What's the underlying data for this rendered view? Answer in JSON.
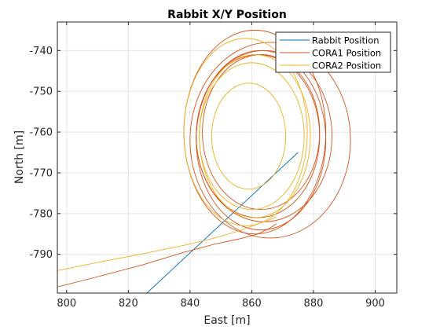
{
  "chart_data": {
    "type": "line",
    "title": "Rabbit X/Y Position",
    "xlabel": "East [m]",
    "ylabel": "North [m]",
    "xlim": [
      797,
      907
    ],
    "ylim": [
      -799.5,
      -733
    ],
    "xticks": [
      800,
      820,
      840,
      860,
      880,
      900
    ],
    "yticks": [
      -740,
      -750,
      -760,
      -770,
      -780,
      -790
    ],
    "grid": true,
    "legend_position": "top-right",
    "series": [
      {
        "name": "Rabbit Position",
        "color": "#0072BD",
        "kind": "segment",
        "x": [
          826,
          875
        ],
        "y": [
          -799.5,
          -765
        ]
      },
      {
        "name": "CORA1 Position",
        "color": "#D95319",
        "kind": "approach_loops",
        "approach_x": [
          797,
          810,
          825,
          838,
          848,
          856,
          862,
          866,
          868
        ],
        "approach_y": [
          -798,
          -795.5,
          -792.5,
          -789.5,
          -787.5,
          -786.2,
          -785,
          -783.5,
          -782.5
        ],
        "loops": [
          {
            "cx": 861,
            "cy": -760,
            "rx": 23,
            "ry": 25
          },
          {
            "cx": 863,
            "cy": -762,
            "rx": 21,
            "ry": 22
          },
          {
            "cx": 862,
            "cy": -761,
            "rx": 20,
            "ry": 20
          },
          {
            "cx": 864,
            "cy": -761,
            "rx": 22,
            "ry": 21
          },
          {
            "cx": 863,
            "cy": -760,
            "rx": 19,
            "ry": 19
          },
          {
            "cx": 866,
            "cy": -762,
            "rx": 26,
            "ry": 24
          }
        ]
      },
      {
        "name": "CORA2 Position",
        "color": "#EDB120",
        "kind": "approach_loops",
        "approach_x": [
          797,
          810,
          825,
          838,
          848,
          856,
          862,
          866,
          868
        ],
        "approach_y": [
          -794,
          -792,
          -789.8,
          -787.8,
          -786,
          -784.2,
          -782.5,
          -781.5,
          -780.8
        ],
        "loops": [
          {
            "cx": 858,
            "cy": -760,
            "rx": 20,
            "ry": 23
          },
          {
            "cx": 860,
            "cy": -761,
            "rx": 17,
            "ry": 18
          },
          {
            "cx": 861,
            "cy": -761,
            "rx": 18,
            "ry": 20
          },
          {
            "cx": 859,
            "cy": -761,
            "rx": 12,
            "ry": 13
          }
        ]
      }
    ]
  }
}
